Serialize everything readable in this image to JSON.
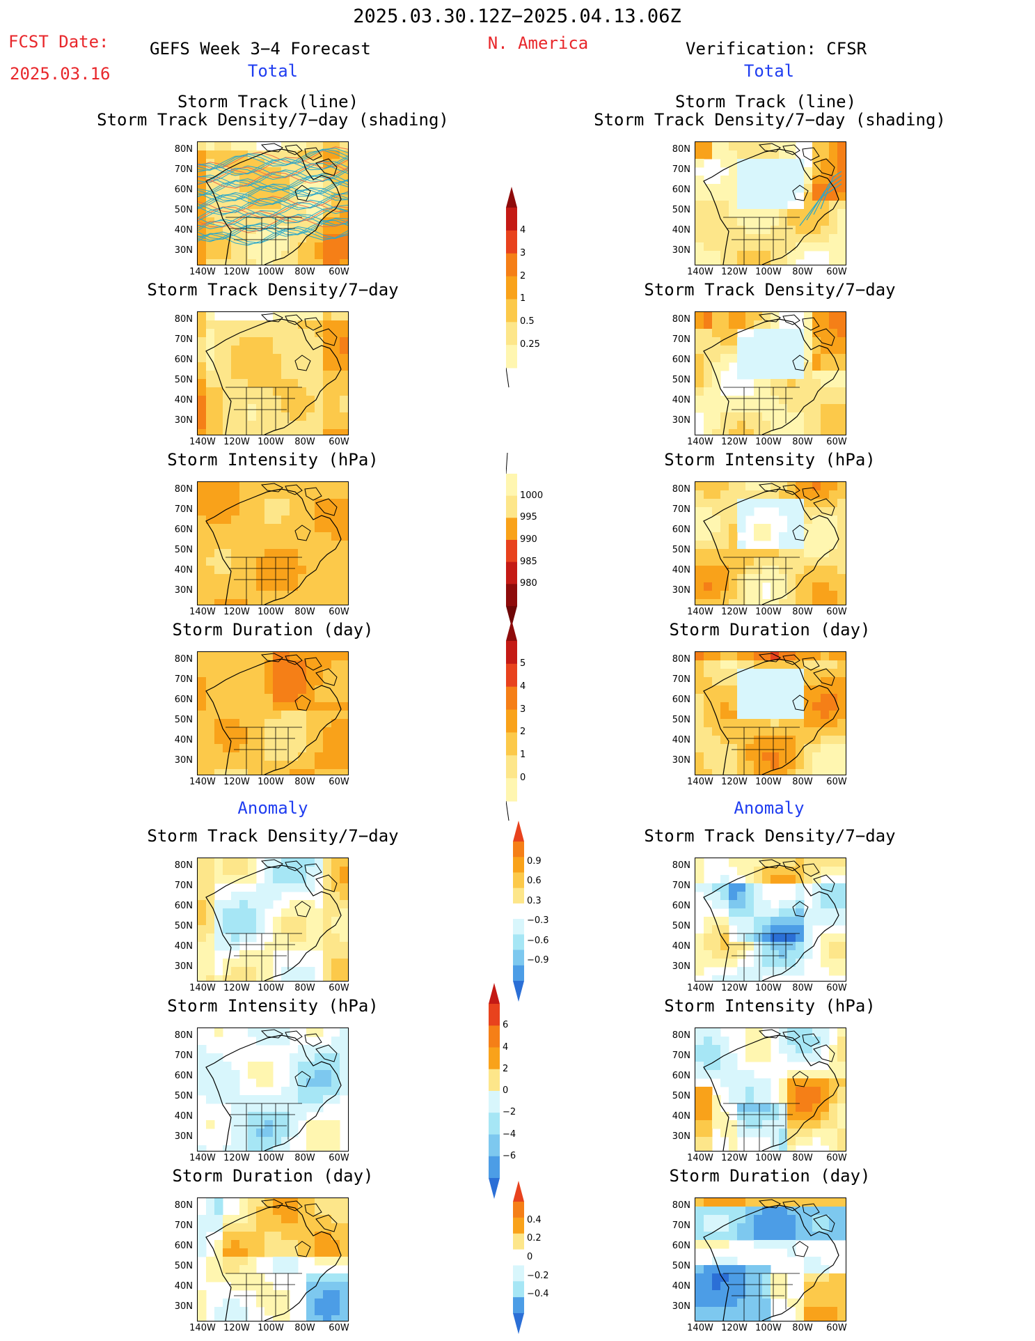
{
  "header": {
    "date_range": "2025.03.30.12Z−2025.04.13.06Z",
    "fcst_label": "FCST Date:",
    "fcst_date": "2025.03.16",
    "forecast_title": "GEFS Week 3−4 Forecast",
    "region": "N. America",
    "verification": "Verification: CFSR",
    "total_left": "Total",
    "total_right": "Total",
    "anomaly_left": "Anomaly",
    "anomaly_right": "Anomaly"
  },
  "panel_titles": {
    "track_line": "Storm Track (line)",
    "track_shading": "Storm Track Density/7−day (shading)",
    "density": "Storm Track Density/7−day",
    "intensity": "Storm Intensity (hPa)",
    "duration": "Storm Duration (day)"
  },
  "axes": {
    "lat_labels": [
      "80N",
      "70N",
      "60N",
      "50N",
      "40N",
      "30N"
    ],
    "lon_labels": [
      "140W",
      "120W",
      "100W",
      "80W",
      "60W"
    ]
  },
  "colorbars": {
    "density_total": [
      "4",
      "3",
      "2",
      "1",
      "0.5",
      "0.25"
    ],
    "intensity_total": [
      "1000",
      "995",
      "990",
      "985",
      "980"
    ],
    "duration_total": [
      "5",
      "4",
      "3",
      "2",
      "1",
      "0"
    ],
    "density_anom": [
      "0.9",
      "0.6",
      "0.3",
      "−0.3",
      "−0.6",
      "−0.9"
    ],
    "intensity_anom": [
      "6",
      "4",
      "2",
      "0",
      "−2",
      "−4",
      "−6"
    ],
    "duration_anom": [
      "0.4",
      "0.2",
      "0",
      "−0.2",
      "−0.4"
    ]
  },
  "colors": {
    "title_red": "#e8272b",
    "title_blue": "#1f3df0",
    "warm": [
      "#fff6b0",
      "#fde68a",
      "#fcc94a",
      "#f9a21a",
      "#f57f17",
      "#e8421d",
      "#c41a15",
      "#8e0b0b"
    ],
    "cool": [
      "#d8f6fc",
      "#a6e6f5",
      "#7dc8ef",
      "#4c9de6",
      "#2b6fd6"
    ]
  }
}
